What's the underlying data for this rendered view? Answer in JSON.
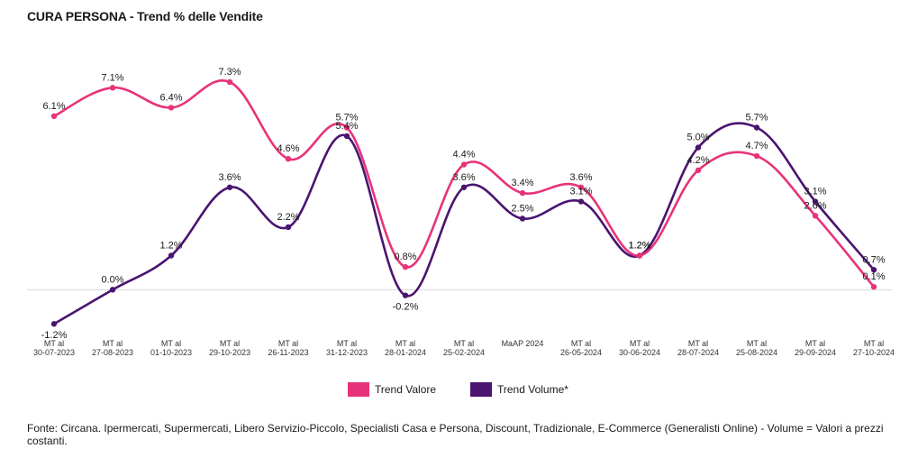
{
  "title": "CURA PERSONA - Trend % delle Vendite",
  "note": "Fonte: Circana. Ipermercati, Supermercati, Libero Servizio-Piccolo, Specialisti Casa e Persona, Discount, Tradizionale, E-Commerce (Generalisti Online) - Volume = Valori a prezzi costanti.",
  "chart_data": {
    "type": "line",
    "title": "CURA PERSONA - Trend % delle Vendite",
    "categories": [
      [
        "MT al",
        "30-07-2023"
      ],
      [
        "MT al",
        "27-08-2023"
      ],
      [
        "MT al",
        "01-10-2023"
      ],
      [
        "MT al",
        "29-10-2023"
      ],
      [
        "MT al",
        "26-11-2023"
      ],
      [
        "MT al",
        "31-12-2023"
      ],
      [
        "MT al",
        "28-01-2024"
      ],
      [
        "MT al",
        "25-02-2024"
      ],
      [
        "MaAP 2024"
      ],
      [
        "MT al",
        "26-05-2024"
      ],
      [
        "MT al",
        "30-06-2024"
      ],
      [
        "MT al",
        "28-07-2024"
      ],
      [
        "MT al",
        "25-08-2024"
      ],
      [
        "MT al",
        "29-09-2024"
      ],
      [
        "MT al",
        "27-10-2024"
      ]
    ],
    "series": [
      {
        "name": "Trend Valore",
        "color": "#e8337a",
        "values": [
          6.1,
          7.1,
          6.4,
          7.3,
          4.6,
          5.7,
          0.8,
          4.4,
          3.4,
          3.6,
          1.2,
          4.2,
          4.7,
          2.6,
          0.1
        ],
        "labels": [
          "6.1%",
          "7.1%",
          "6.4%",
          "7.3%",
          "4.6%",
          "5.7%",
          "0.8%",
          "4.4%",
          "3.4%",
          "3.6%",
          "1.2%",
          "4.2%",
          "4.7%",
          "2.6%",
          "0.1%"
        ]
      },
      {
        "name": "Trend Volume*",
        "color": "#4a1470",
        "values": [
          -1.2,
          0.0,
          1.2,
          3.6,
          2.2,
          5.4,
          -0.2,
          3.6,
          2.5,
          3.1,
          1.2,
          5.0,
          5.7,
          3.1,
          0.7
        ],
        "labels": [
          "-1.2%",
          "0.0%",
          "1.2%",
          "3.6%",
          "2.2%",
          "5.4%",
          "-0.2%",
          "3.6%",
          "2.5%",
          "3.1%",
          "1.2%",
          "5.0%",
          "5.7%",
          "3.1%",
          "0.7%"
        ]
      }
    ],
    "ylim": [
      -1.7,
      8.6
    ],
    "baseline": 0,
    "grid": false,
    "legend": "bottom-center"
  }
}
